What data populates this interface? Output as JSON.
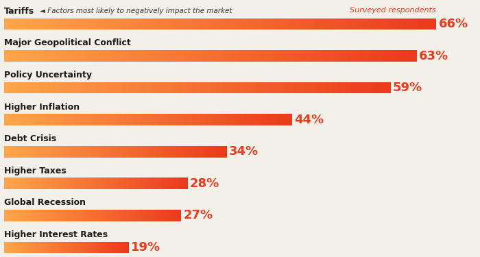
{
  "chart_data": {
    "type": "bar",
    "orientation": "horizontal",
    "categories": [
      "Tariffs",
      "Major Geopolitical Conflict",
      "Policy Uncertainty",
      "Higher Inflation",
      "Debt Crisis",
      "Higher Taxes",
      "Global Recession",
      "Higher Interest Rates"
    ],
    "values": [
      66,
      63,
      59,
      44,
      34,
      28,
      27,
      19
    ],
    "value_labels": [
      "66%",
      "63%",
      "59%",
      "44%",
      "34%",
      "28%",
      "27%",
      "19%"
    ],
    "data_labels": true,
    "tick_labels": false,
    "color": "#eb3a1c",
    "annotations": [
      "◄ Factors most likely to negatively impact the market",
      "Surveyed respondents"
    ]
  }
}
